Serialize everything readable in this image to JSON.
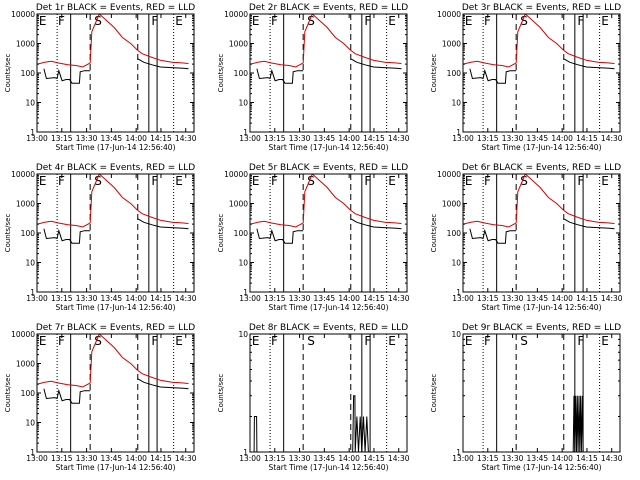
{
  "panels": [
    {
      "title": "Det 1r BLACK = Events, RED = LLD",
      "preset": "A"
    },
    {
      "title": "Det 2r BLACK = Events, RED = LLD",
      "preset": "A"
    },
    {
      "title": "Det 3r BLACK = Events, RED = LLD",
      "preset": "A"
    },
    {
      "title": "Det 4r BLACK = Events, RED = LLD",
      "preset": "A"
    },
    {
      "title": "Det 5r BLACK = Events, RED = LLD",
      "preset": "A"
    },
    {
      "title": "Det 6r BLACK = Events, RED = LLD",
      "preset": "A"
    },
    {
      "title": "Det 7r BLACK = Events, RED = LLD",
      "preset": "A"
    },
    {
      "title": "Det 8r BLACK = Events, RED = LLD",
      "preset": "B"
    },
    {
      "title": "Det 9r BLACK = Events, RED = LLD",
      "preset": "C"
    }
  ],
  "xlabel": "Start Time (17-Jun-14 12:56:40)",
  "ylabel": "Counts/sec",
  "colors": {
    "events": "#000000",
    "lld": "#dd0000"
  },
  "chart_data": {
    "type": "line",
    "x_unit": "minutes after 12:56:40",
    "x_range": [
      3.33,
      98.33
    ],
    "x_ticks": [
      {
        "x": 3.33,
        "label": "13:00"
      },
      {
        "x": 18.33,
        "label": "13:15"
      },
      {
        "x": 33.33,
        "label": "13:30"
      },
      {
        "x": 48.33,
        "label": "13:45"
      },
      {
        "x": 63.33,
        "label": "14:00"
      },
      {
        "x": 78.33,
        "label": "14:15"
      },
      {
        "x": 93.33,
        "label": "14:30"
      }
    ],
    "y_scale": "log",
    "presets": {
      "A": {
        "y_range": [
          1,
          10000
        ],
        "y_ticks": [
          {
            "v": 1,
            "label": "1"
          },
          {
            "v": 10,
            "label": "10"
          },
          {
            "v": 100,
            "label": "100"
          },
          {
            "v": 1000,
            "label": "1000"
          },
          {
            "v": 10000,
            "label": "10000"
          }
        ],
        "markers": [
          {
            "label": "E",
            "x": 4.5
          },
          {
            "label": "F",
            "x": 16.0
          },
          {
            "label": "S",
            "x": 38.0
          },
          {
            "label": "F",
            "x": 72.5
          },
          {
            "label": "E",
            "x": 87.0
          }
        ],
        "lines": [
          {
            "x": 15.5,
            "style": "dotted"
          },
          {
            "x": 23.7,
            "style": "solid"
          },
          {
            "x": 35.5,
            "style": "dashed"
          },
          {
            "x": 64.3,
            "style": "dashed"
          },
          {
            "x": 71.0,
            "style": "solid"
          },
          {
            "x": 76.0,
            "style": "solid"
          },
          {
            "x": 86.0,
            "style": "dotted"
          }
        ],
        "series": [
          {
            "name": "BLACK = Events",
            "segments": [
              [
                [
                  7.5,
                  140
                ],
                [
                  9,
                  65
                ],
                [
                  14,
                  70
                ],
                [
                  15.5,
                  65
                ],
                [
                  16.5,
                  120
                ],
                [
                  18.5,
                  55
                ],
                [
                  21,
                  60
                ],
                [
                  23,
                  60
                ],
                [
                  24.5,
                  45
                ],
                [
                  27,
                  45
                ],
                [
                  29,
                  45
                ],
                [
                  29.5,
                  110
                ],
                [
                  32,
                  120
                ],
                [
                  35.5,
                  120
                ]
              ],
              [
                [
                  64.5,
                  300
                ],
                [
                  68,
                  230
                ],
                [
                  73,
                  190
                ],
                [
                  78,
                  160
                ],
                [
                  86,
                  150
                ],
                [
                  92,
                  145
                ],
                [
                  95,
                  140
                ]
              ]
            ]
          },
          {
            "name": "RED = LLD",
            "segments": [
              [
                [
                  3.6,
                  200
                ],
                [
                  8,
                  230
                ],
                [
                  12,
                  250
                ],
                [
                  16,
                  220
                ],
                [
                  22,
                  190
                ],
                [
                  27,
                  180
                ],
                [
                  31,
                  160
                ],
                [
                  35.5,
                  220
                ],
                [
                  36.5,
                  2500
                ],
                [
                  41,
                  10000
                ],
                [
                  50,
                  3500
                ],
                [
                  55,
                  1600
                ],
                [
                  60,
                  1000
                ],
                [
                  64,
                  600
                ],
                [
                  67,
                  450
                ],
                [
                  72,
                  350
                ],
                [
                  78,
                  270
                ],
                [
                  85,
                  230
                ],
                [
                  91,
                  220
                ],
                [
                  95,
                  210
                ]
              ]
            ]
          }
        ]
      },
      "B": {
        "y_range": [
          1,
          10
        ],
        "y_ticks": [
          {
            "v": 1,
            "label": "1"
          },
          {
            "v": 10,
            "label": "10"
          }
        ],
        "markers": [
          {
            "label": "E",
            "x": 4.5
          },
          {
            "label": "F",
            "x": 16.0
          },
          {
            "label": "S",
            "x": 38.0
          },
          {
            "label": "F",
            "x": 72.5
          },
          {
            "label": "E",
            "x": 87.0
          }
        ],
        "lines": [
          {
            "x": 15.5,
            "style": "dotted"
          },
          {
            "x": 23.7,
            "style": "solid"
          },
          {
            "x": 35.5,
            "style": "dashed"
          },
          {
            "x": 64.3,
            "style": "dashed"
          },
          {
            "x": 71.0,
            "style": "solid"
          },
          {
            "x": 76.0,
            "style": "solid"
          },
          {
            "x": 86.0,
            "style": "dotted"
          }
        ],
        "series": [
          {
            "name": "BLACK = Events",
            "segments": [
              [
                [
                  4.5,
                  1
                ],
                [
                  5.8,
                  1
                ],
                [
                  6.0,
                  2
                ],
                [
                  7.3,
                  2
                ],
                [
                  7.5,
                  1
                ]
              ],
              [
                [
                  64.5,
                  1
                ],
                [
                  65.5,
                  1
                ],
                [
                  66,
                  3
                ],
                [
                  66.8,
                  3
                ],
                [
                  67,
                  1
                ],
                [
                  68,
                  2
                ],
                [
                  69,
                  1
                ],
                [
                  70,
                  2
                ],
                [
                  71,
                  1
                ],
                [
                  72,
                  2
                ],
                [
                  73,
                  1
                ],
                [
                  74,
                  2
                ],
                [
                  75,
                  1
                ]
              ]
            ]
          }
        ]
      },
      "C": {
        "y_range": [
          1,
          10
        ],
        "y_ticks": [
          {
            "v": 1,
            "label": "1"
          },
          {
            "v": 10,
            "label": "10"
          }
        ],
        "markers": [
          {
            "label": "E",
            "x": 4.5
          },
          {
            "label": "F",
            "x": 16.0
          },
          {
            "label": "S",
            "x": 38.0
          },
          {
            "label": "F",
            "x": 72.5
          },
          {
            "label": "E",
            "x": 87.0
          }
        ],
        "lines": [
          {
            "x": 15.5,
            "style": "dotted"
          },
          {
            "x": 23.7,
            "style": "solid"
          },
          {
            "x": 35.5,
            "style": "dashed"
          },
          {
            "x": 64.3,
            "style": "dashed"
          },
          {
            "x": 71.0,
            "style": "solid"
          },
          {
            "x": 76.0,
            "style": "solid"
          },
          {
            "x": 86.0,
            "style": "dotted"
          }
        ],
        "series": [
          {
            "name": "BLACK = Events",
            "segments": [
              [
                [
                  70,
                  1
                ],
                [
                  70.5,
                  3
                ],
                [
                  71,
                  1
                ],
                [
                  71.5,
                  3
                ],
                [
                  72,
                  1
                ],
                [
                  72.5,
                  3
                ],
                [
                  73,
                  1
                ],
                [
                  73.5,
                  3
                ],
                [
                  74,
                  1
                ],
                [
                  74.5,
                  3
                ],
                [
                  75,
                  1
                ],
                [
                  75.5,
                  3
                ],
                [
                  76,
                  1
                ]
              ]
            ]
          }
        ]
      }
    }
  }
}
